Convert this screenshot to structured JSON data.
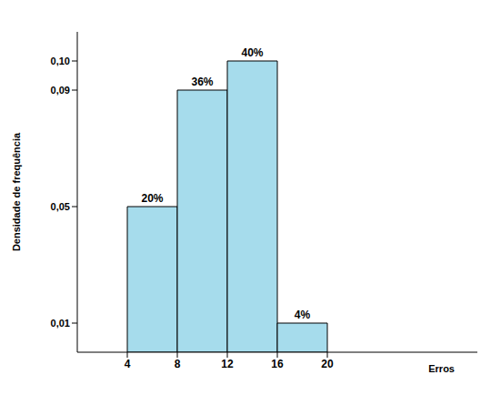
{
  "chart_data": {
    "type": "histogram",
    "bins": [
      4,
      8,
      12,
      16,
      20
    ],
    "values": [
      0.05,
      0.09,
      0.1,
      0.01
    ],
    "annotations": [
      "20%",
      "36%",
      "40%",
      "4%"
    ],
    "color": "#a6dcec",
    "x_label": "Erros",
    "y_label": "Densidade de frequência",
    "xlim": [
      0,
      32
    ],
    "xticks": [
      4,
      8,
      12,
      16,
      20
    ],
    "ylim": [
      0,
      0.11
    ],
    "yticks": [
      {
        "value": 0.01,
        "label": "0,01"
      },
      {
        "value": 0.05,
        "label": "0,05"
      },
      {
        "value": 0.09,
        "label": "0,09"
      },
      {
        "value": 0.1,
        "label": "0,10"
      }
    ],
    "grid": false
  }
}
